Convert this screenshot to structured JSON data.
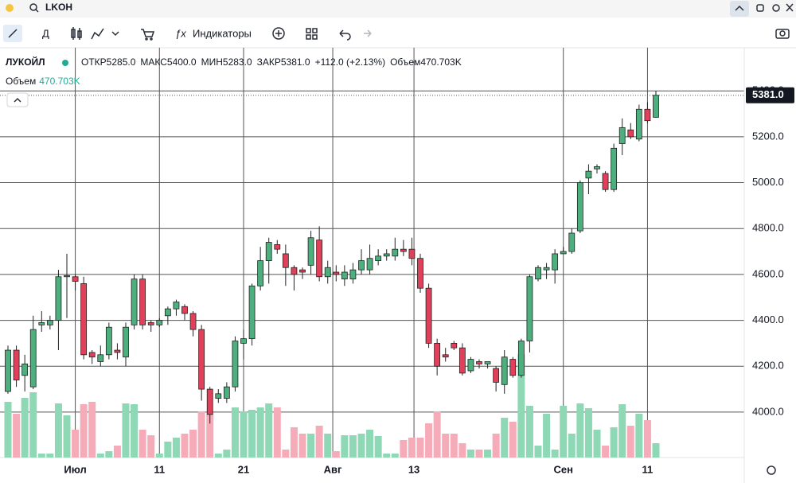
{
  "toolbar": {
    "symbol": "LKOH",
    "interval": "Д",
    "indicators": "Индикаторы"
  },
  "legend": {
    "name": "ЛУКОЙЛ",
    "open_label": "ОТКР",
    "open": "5285.0",
    "high_label": "МАКС",
    "high": "5400.0",
    "low_label": "МИН",
    "low": "5283.0",
    "close_label": "ЗАКР",
    "close": "5381.0",
    "change": "+112.0 (+2.13%)",
    "volume_label": "Объем",
    "volume": "470.703K"
  },
  "volume_legend": {
    "label": "Объем",
    "value": "470.703K"
  },
  "chart_data": {
    "type": "candlestick",
    "up_color": "#4caf7d",
    "down_color": "#e0405a",
    "volume_up_color": "#8fd8b6",
    "volume_down_color": "#f6abb9",
    "open": [
      4090,
      4270,
      4160,
      4110,
      4380,
      4380,
      4400,
      4590,
      4590,
      4560,
      4260,
      4220,
      4250,
      4270,
      4240,
      4380,
      4580,
      4390,
      4380,
      4420,
      4450,
      4460,
      4430,
      4360,
      4100,
      4060,
      4060,
      4110,
      4300,
      4320,
      4550,
      4660,
      4730,
      4690,
      4630,
      4620,
      4640,
      4750,
      4590,
      4610,
      4580,
      4580,
      4620,
      4620,
      4660,
      4680,
      4680,
      4710,
      4710,
      4670,
      4540,
      4300,
      4250,
      4300,
      4280,
      4180,
      4220,
      4210,
      4190,
      4120,
      4230,
      4160,
      4310,
      4580,
      4620,
      4620,
      4690,
      4700,
      4790,
      5020,
      5060,
      5040,
      4970,
      5170,
      5230,
      5190,
      5320,
      5285
    ],
    "high": [
      4290,
      4290,
      4250,
      4420,
      4440,
      4420,
      4620,
      4690,
      4600,
      4590,
      4270,
      4290,
      4390,
      4300,
      4390,
      4600,
      4600,
      4400,
      4410,
      4460,
      4490,
      4470,
      4440,
      4380,
      4110,
      4100,
      4130,
      4330,
      4360,
      4560,
      4720,
      4760,
      4750,
      4730,
      4640,
      4630,
      4790,
      4810,
      4660,
      4640,
      4640,
      4650,
      4710,
      4730,
      4710,
      4710,
      4760,
      4750,
      4760,
      4690,
      4560,
      4320,
      4280,
      4310,
      4300,
      4240,
      4230,
      4220,
      4200,
      4270,
      4240,
      4320,
      4600,
      4640,
      4650,
      4710,
      4720,
      4800,
      5010,
      5080,
      5080,
      5050,
      5170,
      5280,
      5260,
      5340,
      5350,
      5400
    ],
    "low": [
      4080,
      4110,
      4090,
      4100,
      4350,
      4360,
      4270,
      4410,
      4530,
      4230,
      4210,
      4200,
      4230,
      4230,
      4200,
      4360,
      4360,
      4350,
      4370,
      4380,
      4420,
      4400,
      4330,
      4050,
      3950,
      4040,
      4040,
      4090,
      4230,
      4290,
      4530,
      4560,
      4690,
      4550,
      4530,
      4580,
      4600,
      4570,
      4560,
      4570,
      4550,
      4560,
      4600,
      4600,
      4640,
      4660,
      4660,
      4680,
      4640,
      4520,
      4280,
      4160,
      4220,
      4270,
      4160,
      4170,
      4190,
      4190,
      4090,
      4080,
      4150,
      4150,
      4260,
      4570,
      4580,
      4560,
      4690,
      4690,
      4780,
      4950,
      5040,
      4960,
      4960,
      5120,
      5190,
      5180,
      5260,
      5283
    ],
    "close": [
      4270,
      4140,
      4210,
      4360,
      4390,
      4400,
      4590,
      4595,
      4570,
      4250,
      4240,
      4250,
      4370,
      4260,
      4370,
      4580,
      4380,
      4380,
      4400,
      4450,
      4480,
      4430,
      4360,
      4100,
      3990,
      4080,
      4110,
      4310,
      4320,
      4550,
      4660,
      4740,
      4710,
      4630,
      4600,
      4610,
      4760,
      4590,
      4630,
      4600,
      4610,
      4620,
      4660,
      4670,
      4680,
      4690,
      4710,
      4700,
      4670,
      4540,
      4300,
      4200,
      4240,
      4280,
      4170,
      4230,
      4210,
      4220,
      4130,
      4240,
      4160,
      4310,
      4590,
      4630,
      4630,
      4690,
      4700,
      4780,
      5000,
      5050,
      5070,
      4970,
      5150,
      5240,
      5200,
      5320,
      5270,
      5381
    ],
    "volume": [
      1830,
      1438,
      1961,
      2144,
      131,
      131,
      1778,
      1386,
      915,
      1752,
      1831,
      131,
      209,
      392,
      1778,
      1752,
      915,
      732,
      131,
      523,
      654,
      785,
      915,
      1517,
      1438,
      131,
      262,
      1647,
      1517,
      1569,
      1647,
      1778,
      1647,
      262,
      994,
      785,
      785,
      1046,
      785,
      209,
      732,
      732,
      785,
      915,
      706,
      131,
      131,
      575,
      654,
      654,
      1124,
      1517,
      785,
      785,
      471,
      262,
      262,
      262,
      785,
      1307,
      1177,
      3400,
      1700,
      392,
      1438,
      262,
      1700,
      785,
      1778,
      1621,
      915,
      392,
      994,
      1752,
      1046,
      1438,
      1229,
      470.703
    ],
    "volume_lim": [
      0,
      13467
    ],
    "last_label": "5381.0",
    "xlim": [
      -0.946,
      87.5
    ],
    "xticks": [
      {
        "value": 8,
        "label": "Июл"
      },
      {
        "value": 18,
        "label": "11"
      },
      {
        "value": 28,
        "label": "21"
      },
      {
        "value": 38.6,
        "label": "Авг"
      },
      {
        "value": 48.25,
        "label": "13"
      },
      {
        "value": 66,
        "label": "Сен"
      },
      {
        "value": 76,
        "label": "11"
      }
    ],
    "ylim": [
      3802,
      5588
    ],
    "yticks": [
      {
        "value": 4000,
        "label": "4000.0"
      },
      {
        "value": 4200,
        "label": "4200.0"
      },
      {
        "value": 4400,
        "label": "4400.0"
      },
      {
        "value": 4600,
        "label": "4600.0"
      },
      {
        "value": 4800,
        "label": "4800.0"
      },
      {
        "value": 5000,
        "label": "5000.0"
      },
      {
        "value": 5200,
        "label": "5200.0"
      },
      {
        "value": 5400,
        "label": "5400.0"
      }
    ],
    "grid": true
  }
}
